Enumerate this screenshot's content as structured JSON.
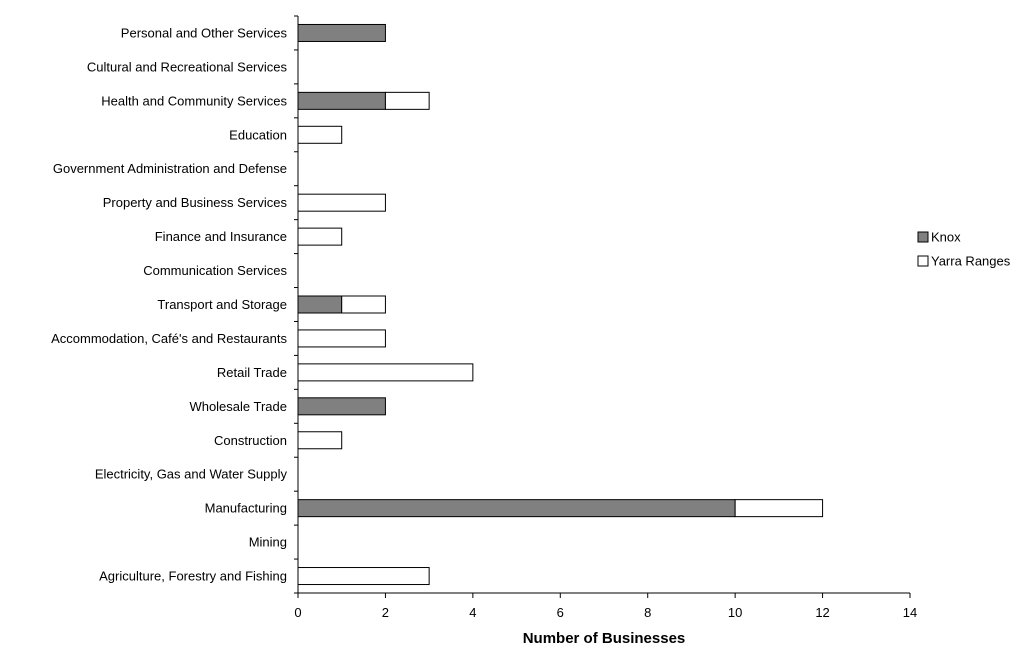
{
  "chart_data": {
    "type": "bar",
    "orientation": "horizontal",
    "stacked": true,
    "title": "",
    "xlabel": "Number of Businesses",
    "ylabel": "",
    "xlim": [
      0,
      14
    ],
    "x_ticks": [
      0,
      2,
      4,
      6,
      8,
      10,
      12,
      14
    ],
    "grid": false,
    "legend_position": "right",
    "categories": [
      "Agriculture, Forestry and Fishing",
      "Mining",
      "Manufacturing",
      "Electricity, Gas and Water Supply",
      "Construction",
      "Wholesale Trade",
      "Retail Trade",
      "Accommodation, Café's and Restaurants",
      "Transport and Storage",
      "Communication Services",
      "Finance and Insurance",
      "Property and Business Services",
      "Government Administration and Defense",
      "Education",
      "Health and Community Services",
      "Cultural and Recreational Services",
      "Personal and Other Services"
    ],
    "series": [
      {
        "name": "Knox",
        "color": "#808080",
        "values": [
          0,
          0,
          10,
          0,
          0,
          2,
          0,
          0,
          1,
          0,
          0,
          0,
          0,
          0,
          2,
          0,
          2
        ]
      },
      {
        "name": "Yarra Ranges",
        "color": "#ffffff",
        "values": [
          3,
          0,
          2,
          0,
          1,
          0,
          4,
          2,
          1,
          0,
          1,
          2,
          0,
          1,
          1,
          0,
          0
        ]
      }
    ]
  }
}
